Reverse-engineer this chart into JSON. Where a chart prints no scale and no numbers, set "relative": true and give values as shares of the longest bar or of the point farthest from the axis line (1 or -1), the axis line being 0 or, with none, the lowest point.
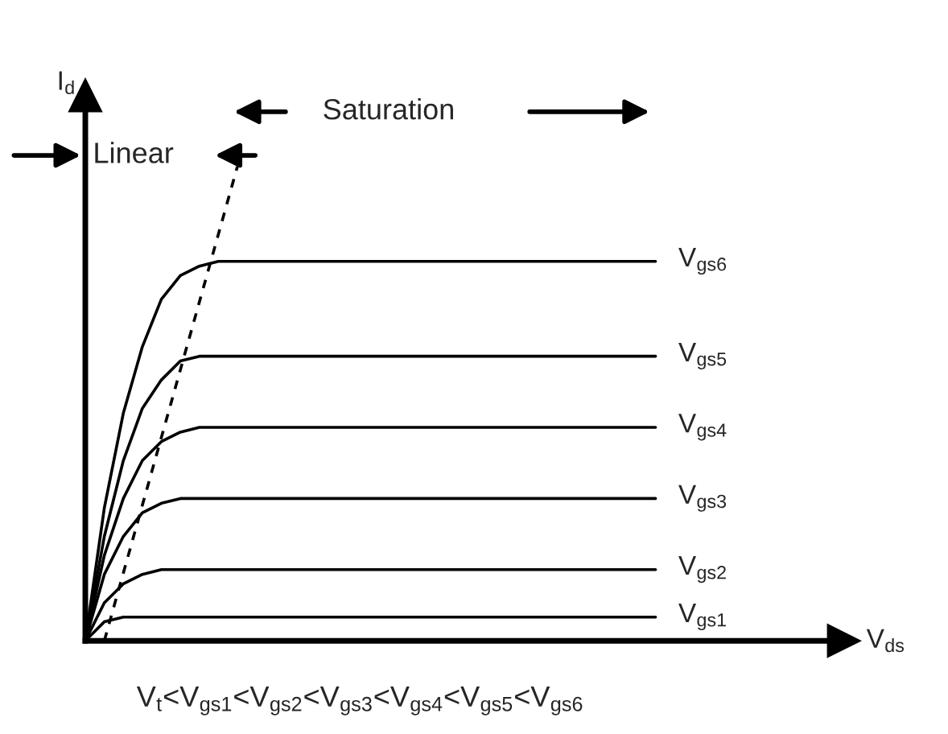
{
  "chart_data": {
    "type": "line",
    "relative": true,
    "ylabel": "I$_{d}$",
    "categories": [
      null,
      null,
      null,
      null,
      null,
      null,
      null,
      null,
      null,
      null,
      null,
      null,
      null,
      null,
      null,
      null,
      null,
      null,
      null,
      null,
      null,
      null,
      null,
      null,
      null,
      null,
      null,
      null,
      null,
      null,
      null
    ],
    "series": [
      {
        "name": "V$_{gs1}$",
        "color": "#000000",
        "values": [
          0,
          0.04,
          0.05,
          0.05,
          0.05,
          0.05,
          0.05,
          0.05,
          0.05,
          0.05,
          0.05,
          0.05,
          0.05,
          0.05,
          0.05,
          0.05,
          0.05,
          0.05,
          0.05,
          0.05,
          0.05,
          0.05,
          0.05,
          0.05,
          0.05,
          0.05,
          0.05,
          0.05,
          0.05,
          0.05,
          0.05
        ]
      },
      {
        "name": "V$_{gs2}$",
        "color": "#000000",
        "values": [
          0,
          0.08,
          0.12,
          0.14,
          0.15,
          0.15,
          0.15,
          0.15,
          0.15,
          0.15,
          0.15,
          0.15,
          0.15,
          0.15,
          0.15,
          0.15,
          0.15,
          0.15,
          0.15,
          0.15,
          0.15,
          0.15,
          0.15,
          0.15,
          0.15,
          0.15,
          0.15,
          0.15,
          0.15,
          0.15,
          0.15
        ]
      },
      {
        "name": "V$_{gs3}$",
        "color": "#000000",
        "values": [
          0,
          0.14,
          0.22,
          0.27,
          0.29,
          0.3,
          0.3,
          0.3,
          0.3,
          0.3,
          0.3,
          0.3,
          0.3,
          0.3,
          0.3,
          0.3,
          0.3,
          0.3,
          0.3,
          0.3,
          0.3,
          0.3,
          0.3,
          0.3,
          0.3,
          0.3,
          0.3,
          0.3,
          0.3,
          0.3,
          0.3
        ]
      },
      {
        "name": "V$_{gs4}$",
        "color": "#000000",
        "values": [
          0,
          0.18,
          0.3,
          0.38,
          0.42,
          0.44,
          0.45,
          0.45,
          0.45,
          0.45,
          0.45,
          0.45,
          0.45,
          0.45,
          0.45,
          0.45,
          0.45,
          0.45,
          0.45,
          0.45,
          0.45,
          0.45,
          0.45,
          0.45,
          0.45,
          0.45,
          0.45,
          0.45,
          0.45,
          0.45,
          0.45
        ]
      },
      {
        "name": "V$_{gs5}$",
        "color": "#000000",
        "values": [
          0,
          0.22,
          0.38,
          0.49,
          0.55,
          0.59,
          0.6,
          0.6,
          0.6,
          0.6,
          0.6,
          0.6,
          0.6,
          0.6,
          0.6,
          0.6,
          0.6,
          0.6,
          0.6,
          0.6,
          0.6,
          0.6,
          0.6,
          0.6,
          0.6,
          0.6,
          0.6,
          0.6,
          0.6,
          0.6,
          0.6
        ]
      },
      {
        "name": "V$_{gs6}$",
        "color": "#000000",
        "values": [
          0,
          0.28,
          0.48,
          0.62,
          0.72,
          0.77,
          0.79,
          0.8,
          0.8,
          0.8,
          0.8,
          0.8,
          0.8,
          0.8,
          0.8,
          0.8,
          0.8,
          0.8,
          0.8,
          0.8,
          0.8,
          0.8,
          0.8,
          0.8,
          0.8,
          0.8,
          0.8,
          0.8,
          0.8,
          0.8,
          0.8
        ]
      },
      {
        "color": "#000000",
        "line_style": "dashed",
        "values": [
          null,
          0,
          null,
          null,
          null,
          null,
          null,
          null,
          1,
          null,
          null,
          null,
          null,
          null,
          null,
          null,
          null,
          null,
          null,
          null,
          null,
          null,
          null,
          null,
          null,
          null,
          null,
          null,
          null,
          null,
          null
        ]
      }
    ],
    "annotations": [
      "Linear",
      "Saturation",
      "V$_{ds}$",
      "V$_{t}$<V$_{gs1}$<V$_{gs2}$<V$_{gs3}$<V$_{gs4}$<V$_{gs5}$<V$_{gs6}$"
    ],
    "marker": "none",
    "line_style": "solid",
    "legend": false
  }
}
